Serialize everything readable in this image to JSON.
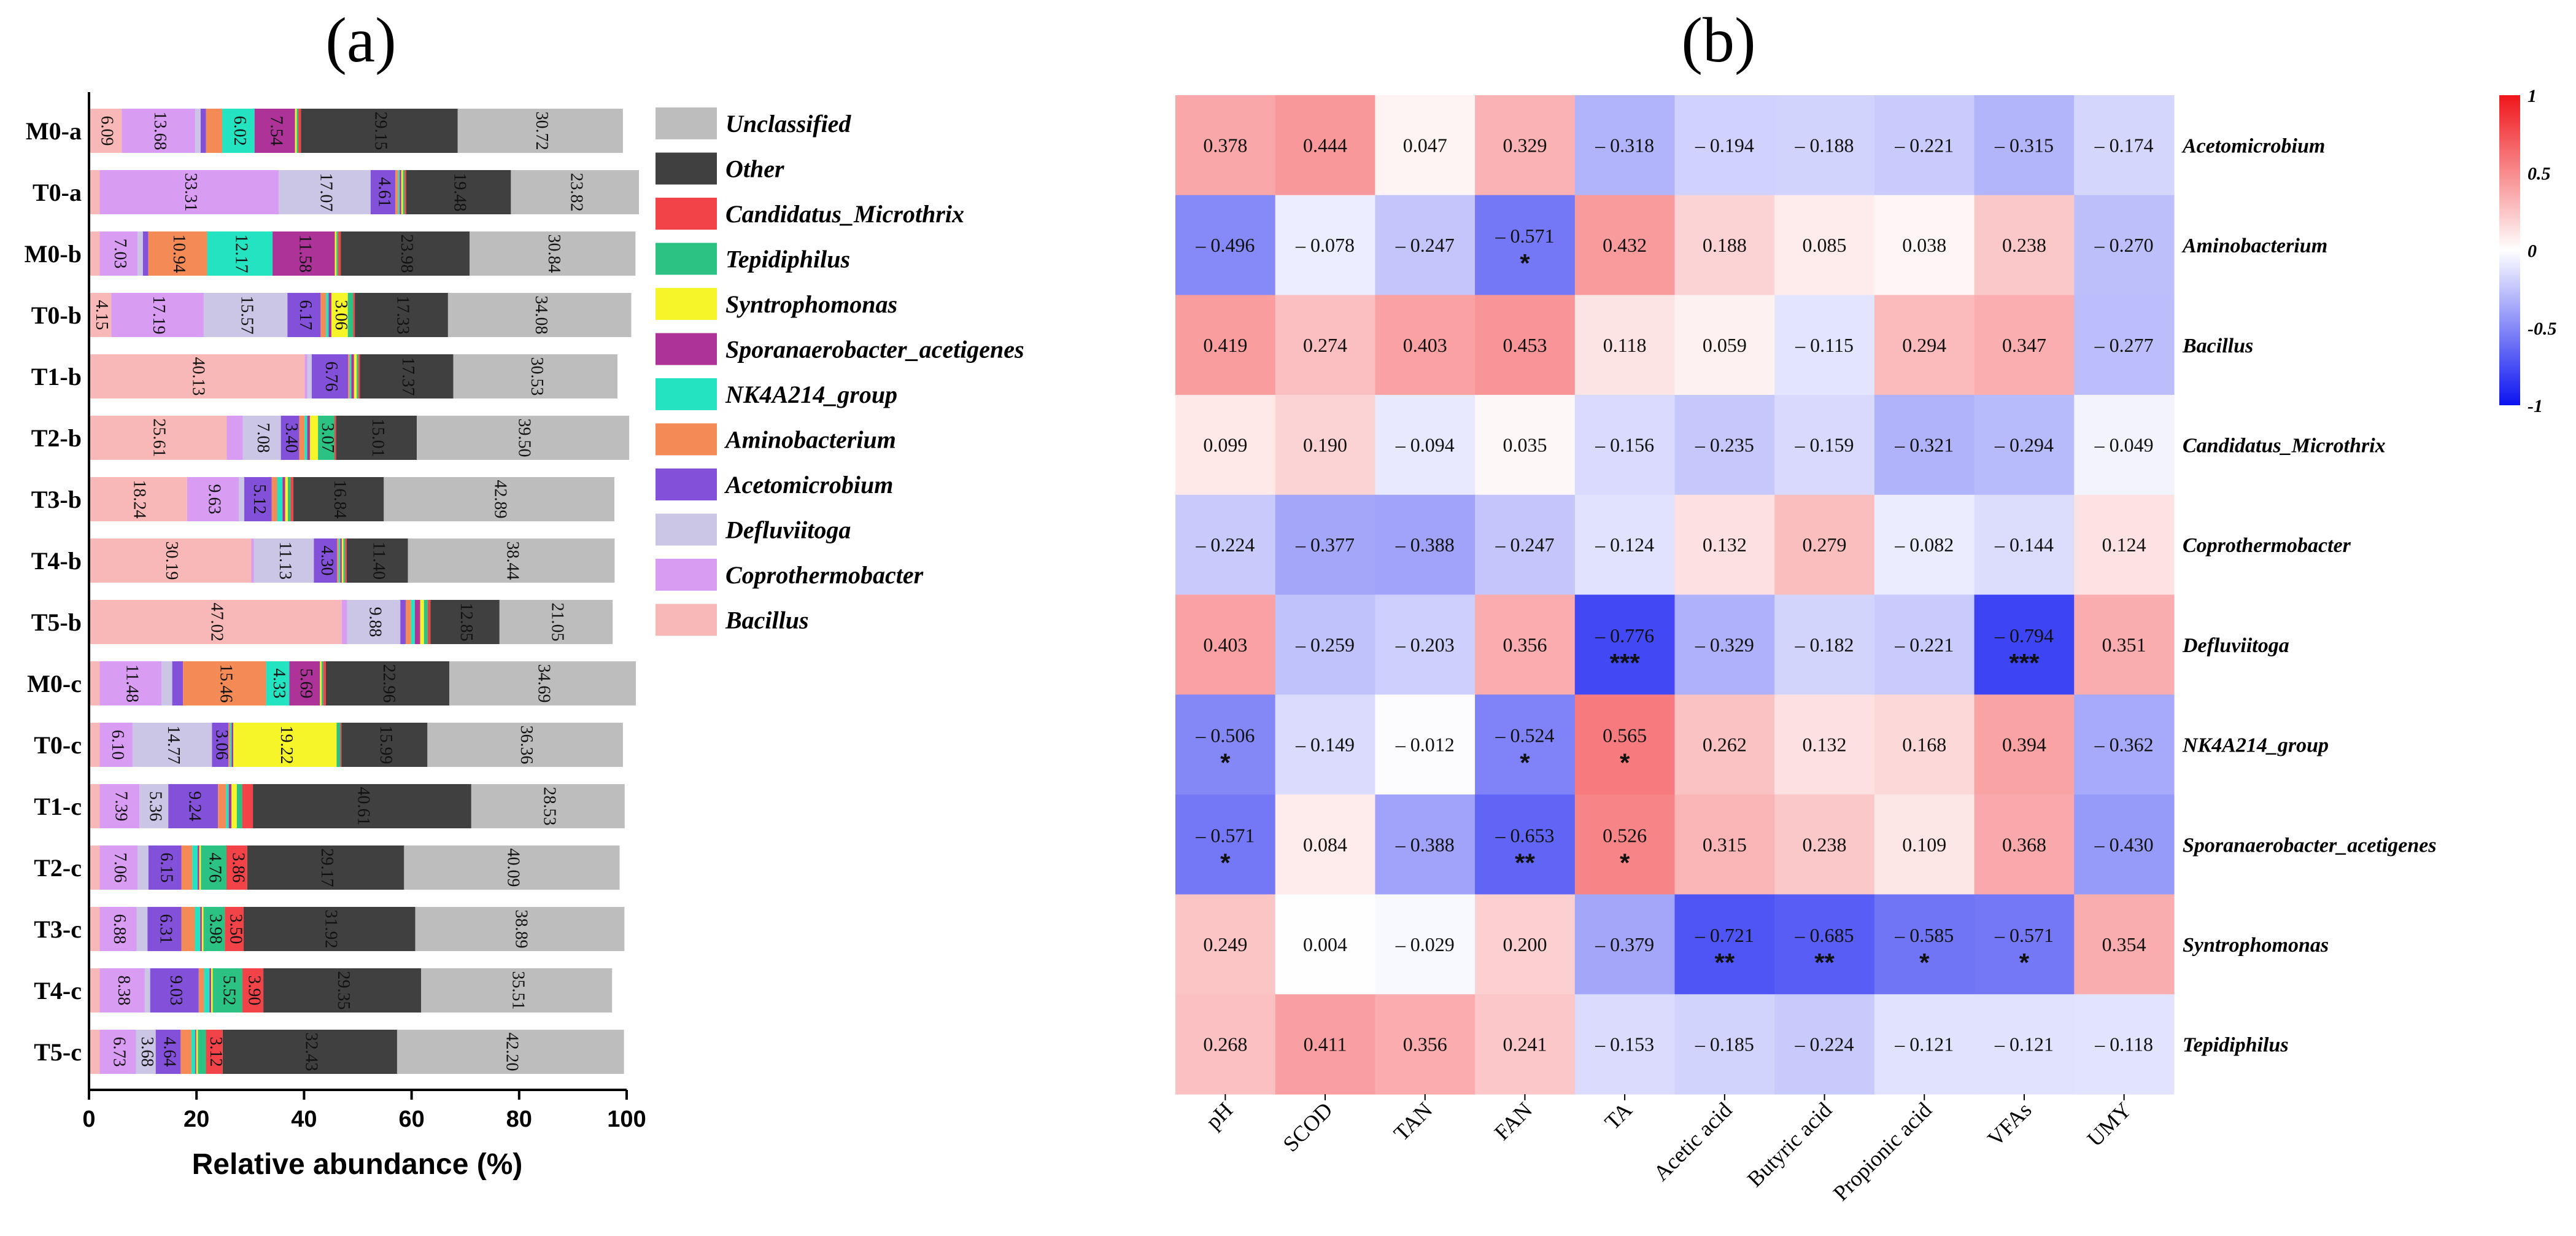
{
  "chart_data": [
    {
      "type": "bar",
      "orientation": "horizontal-stacked",
      "panel_label": "(a)",
      "xlabel": "Relative abundance (%)",
      "xlim": [
        0,
        100
      ],
      "xticks": [
        "0",
        "20",
        "40",
        "60",
        "80",
        "100"
      ],
      "categories": [
        "M0-a",
        "T0-a",
        "M0-b",
        "T0-b",
        "T1-b",
        "T2-b",
        "T3-b",
        "T4-b",
        "T5-b",
        "M0-c",
        "T0-c",
        "T1-c",
        "T2-c",
        "T3-c",
        "T4-c",
        "T5-c"
      ],
      "series": [
        {
          "name": "Bacillus",
          "color": "#f9b8b8",
          "values": [
            6.09,
            2,
            2,
            4.15,
            40.13,
            25.61,
            18.24,
            30.19,
            47.02,
            2,
            2,
            2,
            2,
            2,
            2,
            2
          ]
        },
        {
          "name": "Coprothermobacter",
          "color": "#d89cf3",
          "values": [
            13.68,
            33.31,
            7.03,
            17.19,
            0.5,
            3,
            9.63,
            0.5,
            1,
            11.48,
            6.1,
            7.39,
            7.06,
            6.88,
            8.38,
            6.73
          ]
        },
        {
          "name": "Defluviitoga",
          "color": "#cbc5e6",
          "values": [
            1,
            17.07,
            1,
            15.57,
            0.8,
            7.08,
            1,
            11.13,
            9.88,
            2,
            14.77,
            5.36,
            2,
            2,
            1,
            3.68
          ]
        },
        {
          "name": "Acetomicrobium",
          "color": "#8350d9",
          "values": [
            1,
            4.61,
            1,
            6.17,
            6.76,
            3.4,
            5.12,
            4.3,
            1,
            2,
            3.06,
            9.24,
            6.15,
            6.31,
            9.03,
            4.64
          ]
        },
        {
          "name": "Aminobacterium",
          "color": "#f48a56",
          "values": [
            3,
            0.5,
            10.94,
            1,
            0.3,
            1,
            1,
            0.3,
            1,
            15.46,
            0.3,
            1.5,
            2,
            2.5,
            1,
            2
          ]
        },
        {
          "name": "NK4A214_group",
          "color": "#24e3c0",
          "values": [
            6.02,
            0.3,
            12.17,
            0.5,
            0.3,
            0.5,
            1,
            0.3,
            0.7,
            4.33,
            0.3,
            0.5,
            1,
            1,
            1,
            0.7
          ]
        },
        {
          "name": "Sporanaerobacter_acetigenes",
          "color": "#ad3399",
          "values": [
            7.54,
            0.3,
            11.58,
            0.5,
            0.5,
            0.5,
            0.5,
            0.3,
            1,
            5.69,
            0.3,
            0.5,
            0.3,
            0.3,
            0.3,
            0.2
          ]
        },
        {
          "name": "Syntrophomonas",
          "color": "#f5f52a",
          "values": [
            0.3,
            0.3,
            0.3,
            3.06,
            0.5,
            1.5,
            0.5,
            0.3,
            0.7,
            0.3,
            19.22,
            1,
            0.3,
            0.3,
            0.3,
            0.3
          ]
        },
        {
          "name": "Tepidiphilus",
          "color": "#2cc283",
          "values": [
            0.3,
            0.3,
            0.3,
            1,
            0.3,
            3.07,
            0.5,
            0.3,
            0.7,
            0.3,
            0.7,
            1,
            4.76,
            3.98,
            5.52,
            1.5
          ]
        },
        {
          "name": "Candidatus_Microthrix",
          "color": "#f24448",
          "values": [
            0.5,
            0.3,
            0.5,
            0.3,
            0.3,
            0.3,
            0.5,
            0.3,
            0.5,
            0.5,
            0.2,
            2,
            3.86,
            3.5,
            3.9,
            3.12
          ]
        },
        {
          "name": "Other",
          "color": "#404040",
          "values": [
            29.15,
            19.48,
            23.98,
            17.33,
            17.37,
            15.01,
            16.84,
            11.4,
            12.85,
            22.96,
            15.99,
            40.61,
            29.17,
            31.92,
            29.35,
            32.43
          ]
        },
        {
          "name": "Unclassified",
          "color": "#bdbdbd",
          "values": [
            30.72,
            23.82,
            30.84,
            34.08,
            30.53,
            39.5,
            42.89,
            38.44,
            21.05,
            34.69,
            36.36,
            28.53,
            40.09,
            38.89,
            35.51,
            42.2
          ]
        }
      ],
      "data_labels": [
        [
          "6.09",
          "13.68",
          null,
          null,
          null,
          "6.02",
          "7.54",
          null,
          null,
          null,
          "29.15",
          "30.72"
        ],
        [
          null,
          "33.31",
          "17.07",
          "4.61",
          null,
          null,
          null,
          null,
          null,
          null,
          "19.48",
          "23.82"
        ],
        [
          null,
          "7.03",
          null,
          null,
          "10.94",
          "12.17",
          "11.58",
          null,
          null,
          null,
          "23.98",
          "30.84"
        ],
        [
          "4.15",
          "17.19",
          "15.57",
          "6.17",
          null,
          null,
          null,
          "3.06",
          null,
          null,
          "17.33",
          "34.08"
        ],
        [
          "40.13",
          null,
          null,
          "6.76",
          null,
          null,
          null,
          null,
          null,
          null,
          "17.37",
          "30.53"
        ],
        [
          "25.61",
          null,
          "7.08",
          "3.40",
          null,
          null,
          null,
          null,
          "3.07",
          null,
          "15.01",
          "39.50"
        ],
        [
          "18.24",
          "9.63",
          null,
          "5.12",
          null,
          null,
          null,
          null,
          null,
          null,
          "16.84",
          "42.89"
        ],
        [
          "30.19",
          null,
          "11.13",
          "4.30",
          null,
          null,
          null,
          null,
          null,
          null,
          "11.40",
          "38.44"
        ],
        [
          "47.02",
          null,
          "9.88",
          null,
          null,
          null,
          null,
          null,
          null,
          null,
          "12.85",
          "21.05"
        ],
        [
          null,
          "11.48",
          null,
          null,
          "15.46",
          "4.33",
          "5.69",
          null,
          null,
          null,
          "22.96",
          "34.69"
        ],
        [
          null,
          "6.10",
          "14.77",
          "3.06",
          null,
          null,
          null,
          "19.22",
          null,
          null,
          "15.99",
          "36.36"
        ],
        [
          null,
          "7.39",
          "5.36",
          "9.24",
          null,
          null,
          null,
          null,
          null,
          null,
          "40.61",
          "28.53"
        ],
        [
          null,
          "7.06",
          null,
          "6.15",
          null,
          null,
          null,
          null,
          "4.76",
          "3.86",
          "29.17",
          "40.09"
        ],
        [
          null,
          "6.88",
          null,
          "6.31",
          null,
          null,
          null,
          null,
          "3.98",
          "3.50",
          "31.92",
          "38.89"
        ],
        [
          null,
          "8.38",
          null,
          "9.03",
          null,
          null,
          null,
          null,
          "5.52",
          "3.90",
          "29.35",
          "35.51"
        ],
        [
          null,
          "6.73",
          "3.68",
          "4.64",
          null,
          null,
          null,
          null,
          null,
          "3.12",
          "32.43",
          "42.20"
        ]
      ],
      "legend": [
        "Unclassified",
        "Other",
        "Candidatus_Microthrix",
        "Tepidiphilus",
        "Syntrophomonas",
        "Sporanaerobacter_acetigenes",
        "NK4A214_group",
        "Aminobacterium",
        "Acetomicrobium",
        "Defluviitoga",
        "Coprothermobacter",
        "Bacillus"
      ],
      "legend_position": "right"
    },
    {
      "type": "heatmap",
      "panel_label": "(b)",
      "columns": [
        "pH",
        "SCOD",
        "TAN",
        "FAN",
        "TA",
        "Acetic acid",
        "Butyric acid",
        "Propionic acid",
        "VFAs",
        "UMY"
      ],
      "rows": [
        "Acetomicrobium",
        "Aminobacterium",
        "Bacillus",
        "Candidatus_Microthrix",
        "Coprothermobacter",
        "Defluviitoga",
        "NK4A214_group",
        "Sporanaerobacter_acetigenes",
        "Syntrophomonas",
        "Tepidiphilus"
      ],
      "values": [
        [
          0.378,
          0.444,
          0.047,
          0.329,
          -0.318,
          -0.194,
          -0.188,
          -0.221,
          -0.315,
          -0.174
        ],
        [
          -0.496,
          -0.078,
          -0.247,
          -0.571,
          0.432,
          0.188,
          0.085,
          0.038,
          0.238,
          -0.27
        ],
        [
          0.419,
          0.274,
          0.403,
          0.453,
          0.118,
          0.059,
          -0.115,
          0.294,
          0.347,
          -0.277
        ],
        [
          0.099,
          0.19,
          -0.094,
          0.035,
          -0.156,
          -0.235,
          -0.159,
          -0.321,
          -0.294,
          -0.049
        ],
        [
          -0.224,
          -0.377,
          -0.388,
          -0.247,
          -0.124,
          0.132,
          0.279,
          -0.082,
          -0.144,
          0.124
        ],
        [
          0.403,
          -0.259,
          -0.203,
          0.356,
          -0.776,
          -0.329,
          -0.182,
          -0.221,
          -0.794,
          0.351
        ],
        [
          -0.506,
          -0.149,
          -0.012,
          -0.524,
          0.565,
          0.262,
          0.132,
          0.168,
          0.394,
          -0.362
        ],
        [
          -0.571,
          0.084,
          -0.388,
          -0.653,
          0.526,
          0.315,
          0.238,
          0.109,
          0.368,
          -0.43
        ],
        [
          0.249,
          0.004,
          -0.029,
          0.2,
          -0.379,
          -0.721,
          -0.685,
          -0.585,
          -0.571,
          0.354
        ],
        [
          0.268,
          0.411,
          0.356,
          0.241,
          -0.153,
          -0.185,
          -0.224,
          -0.121,
          -0.121,
          -0.118
        ]
      ],
      "labels": [
        [
          "0.378",
          "0.444",
          "0.047",
          "0.329",
          "– 0.318",
          "– 0.194",
          "– 0.188",
          "– 0.221",
          "– 0.315",
          "– 0.174"
        ],
        [
          "– 0.496",
          "– 0.078",
          "– 0.247",
          "– 0.571",
          "0.432",
          "0.188",
          "0.085",
          "0.038",
          "0.238",
          "– 0.270"
        ],
        [
          "0.419",
          "0.274",
          "0.403",
          "0.453",
          "0.118",
          "0.059",
          "– 0.115",
          "0.294",
          "0.347",
          "– 0.277"
        ],
        [
          "0.099",
          "0.190",
          "– 0.094",
          "0.035",
          "– 0.156",
          "– 0.235",
          "– 0.159",
          "– 0.321",
          "– 0.294",
          "– 0.049"
        ],
        [
          "– 0.224",
          "– 0.377",
          "– 0.388",
          "– 0.247",
          "– 0.124",
          "0.132",
          "0.279",
          "– 0.082",
          "– 0.144",
          "0.124"
        ],
        [
          "0.403",
          "– 0.259",
          "– 0.203",
          "0.356",
          "– 0.776",
          "– 0.329",
          "– 0.182",
          "– 0.221",
          "– 0.794",
          "0.351"
        ],
        [
          "– 0.506",
          "– 0.149",
          "– 0.012",
          "– 0.524",
          "0.565",
          "0.262",
          "0.132",
          "0.168",
          "0.394",
          "– 0.362"
        ],
        [
          "– 0.571",
          "0.084",
          "– 0.388",
          "– 0.653",
          "0.526",
          "0.315",
          "0.238",
          "0.109",
          "0.368",
          "– 0.430"
        ],
        [
          "0.249",
          "0.004",
          "– 0.029",
          "0.200",
          "– 0.379",
          "– 0.721",
          "– 0.685",
          "– 0.585",
          "– 0.571",
          "0.354"
        ],
        [
          "0.268",
          "0.411",
          "0.356",
          "0.241",
          "– 0.153",
          "– 0.185",
          "– 0.224",
          "– 0.121",
          "– 0.121",
          "– 0.118"
        ]
      ],
      "significance": [
        [
          "",
          "",
          "",
          "",
          "",
          "",
          "",
          "",
          "",
          ""
        ],
        [
          "",
          "",
          "",
          "*",
          "",
          "",
          "",
          "",
          "",
          ""
        ],
        [
          "",
          "",
          "",
          "",
          "",
          "",
          "",
          "",
          "",
          ""
        ],
        [
          "",
          "",
          "",
          "",
          "",
          "",
          "",
          "",
          "",
          ""
        ],
        [
          "",
          "",
          "",
          "",
          "",
          "",
          "",
          "",
          "",
          ""
        ],
        [
          "",
          "",
          "",
          "",
          "***",
          "",
          "",
          "",
          "***",
          ""
        ],
        [
          "*",
          "",
          "",
          "*",
          "*",
          "",
          "",
          "",
          "",
          ""
        ],
        [
          "*",
          "",
          "",
          "**",
          "*",
          "",
          "",
          "",
          "",
          ""
        ],
        [
          "",
          "",
          "",
          "",
          "",
          "**",
          "**",
          "*",
          "*",
          ""
        ],
        [
          "",
          "",
          "",
          "",
          "",
          "",
          "",
          "",
          "",
          ""
        ]
      ],
      "colorbar": {
        "range": [
          -1,
          1
        ],
        "ticks": [
          "1",
          "0.5",
          "0",
          "-0.5",
          "-1"
        ],
        "colors": {
          "neg": "#0b13f0",
          "zero": "#ffffff",
          "pos": "#f0161b"
        }
      }
    }
  ]
}
